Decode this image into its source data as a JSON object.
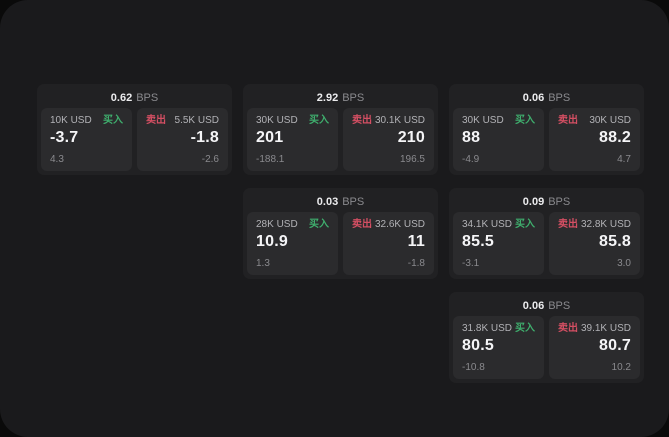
{
  "labels": {
    "buy": "买入",
    "sell": "卖出",
    "bps": "BPS"
  },
  "colors": {
    "background": "#0a0a0a",
    "window": "#1a1a1c",
    "card": "#212123",
    "panel": "#2b2b2d",
    "buy_green": "#3fae6d",
    "sell_red": "#d44f63",
    "value_white": "#f5f5f7",
    "muted_gray": "#8a8a8e"
  },
  "cards": [
    {
      "bps": "0.62",
      "buy": {
        "notional": "10K USD",
        "price": "-3.7",
        "delta": "4.3"
      },
      "sell": {
        "notional": "5.5K USD",
        "price": "-1.8",
        "delta": "-2.6"
      }
    },
    {
      "bps": "2.92",
      "buy": {
        "notional": "30K USD",
        "price": "201",
        "delta": "-188.1"
      },
      "sell": {
        "notional": "30.1K USD",
        "price": "210",
        "delta": "196.5"
      }
    },
    {
      "bps": "0.06",
      "buy": {
        "notional": "30K USD",
        "price": "88",
        "delta": "-4.9"
      },
      "sell": {
        "notional": "30K USD",
        "price": "88.2",
        "delta": "4.7"
      }
    },
    {
      "bps": "0.03",
      "buy": {
        "notional": "28K USD",
        "price": "10.9",
        "delta": "1.3"
      },
      "sell": {
        "notional": "32.6K USD",
        "price": "11",
        "delta": "-1.8"
      }
    },
    {
      "bps": "0.09",
      "buy": {
        "notional": "34.1K USD",
        "price": "85.5",
        "delta": "-3.1"
      },
      "sell": {
        "notional": "32.8K USD",
        "price": "85.8",
        "delta": "3.0"
      }
    },
    {
      "bps": "0.06",
      "buy": {
        "notional": "31.8K USD",
        "price": "80.5",
        "delta": "-10.8"
      },
      "sell": {
        "notional": "39.1K USD",
        "price": "80.7",
        "delta": "10.2"
      }
    }
  ]
}
